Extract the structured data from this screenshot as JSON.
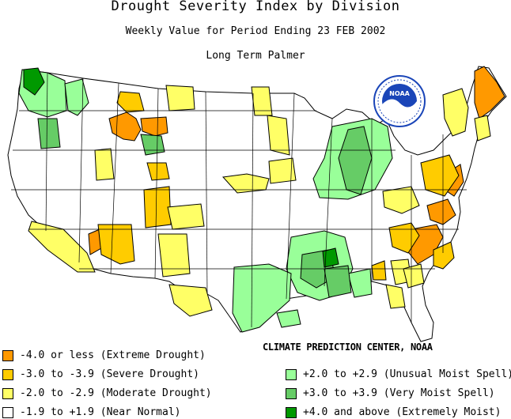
{
  "title": "Drought Severity Index by Division",
  "subtitle": "Weekly Value for Period Ending 23 FEB 2002",
  "index_type": "Long Term Palmer",
  "logo_text": "NOAA",
  "credit": "CLIMATE PREDICTION CENTER, NOAA",
  "colors": {
    "extreme_drought": "#ff9900",
    "severe_drought": "#ffcc00",
    "moderate_drought": "#ffff66",
    "near_normal": "#ffffff",
    "unusual_moist": "#99ff99",
    "very_moist": "#66cc66",
    "extremely_moist": "#009900",
    "borders": "#000000",
    "logo_blue": "#1a45b8"
  },
  "legend": {
    "left": [
      {
        "label": "-4.0 or less (Extreme Drought)",
        "color": "#ff9900"
      },
      {
        "label": "-3.0 to -3.9 (Severe Drought)",
        "color": "#ffcc00"
      },
      {
        "label": "-2.0 to -2.9 (Moderate Drought)",
        "color": "#ffff66"
      },
      {
        "label": "-1.9 to +1.9 (Near Normal)",
        "color": "#ffffff"
      }
    ],
    "right": [
      {
        "label": "+2.0 to +2.9 (Unusual Moist Spell)",
        "color": "#99ff99"
      },
      {
        "label": "+3.0 to +3.9 (Very Moist Spell)",
        "color": "#66cc66"
      },
      {
        "label": "+4.0 and above (Extremely Moist)",
        "color": "#009900"
      }
    ]
  }
}
